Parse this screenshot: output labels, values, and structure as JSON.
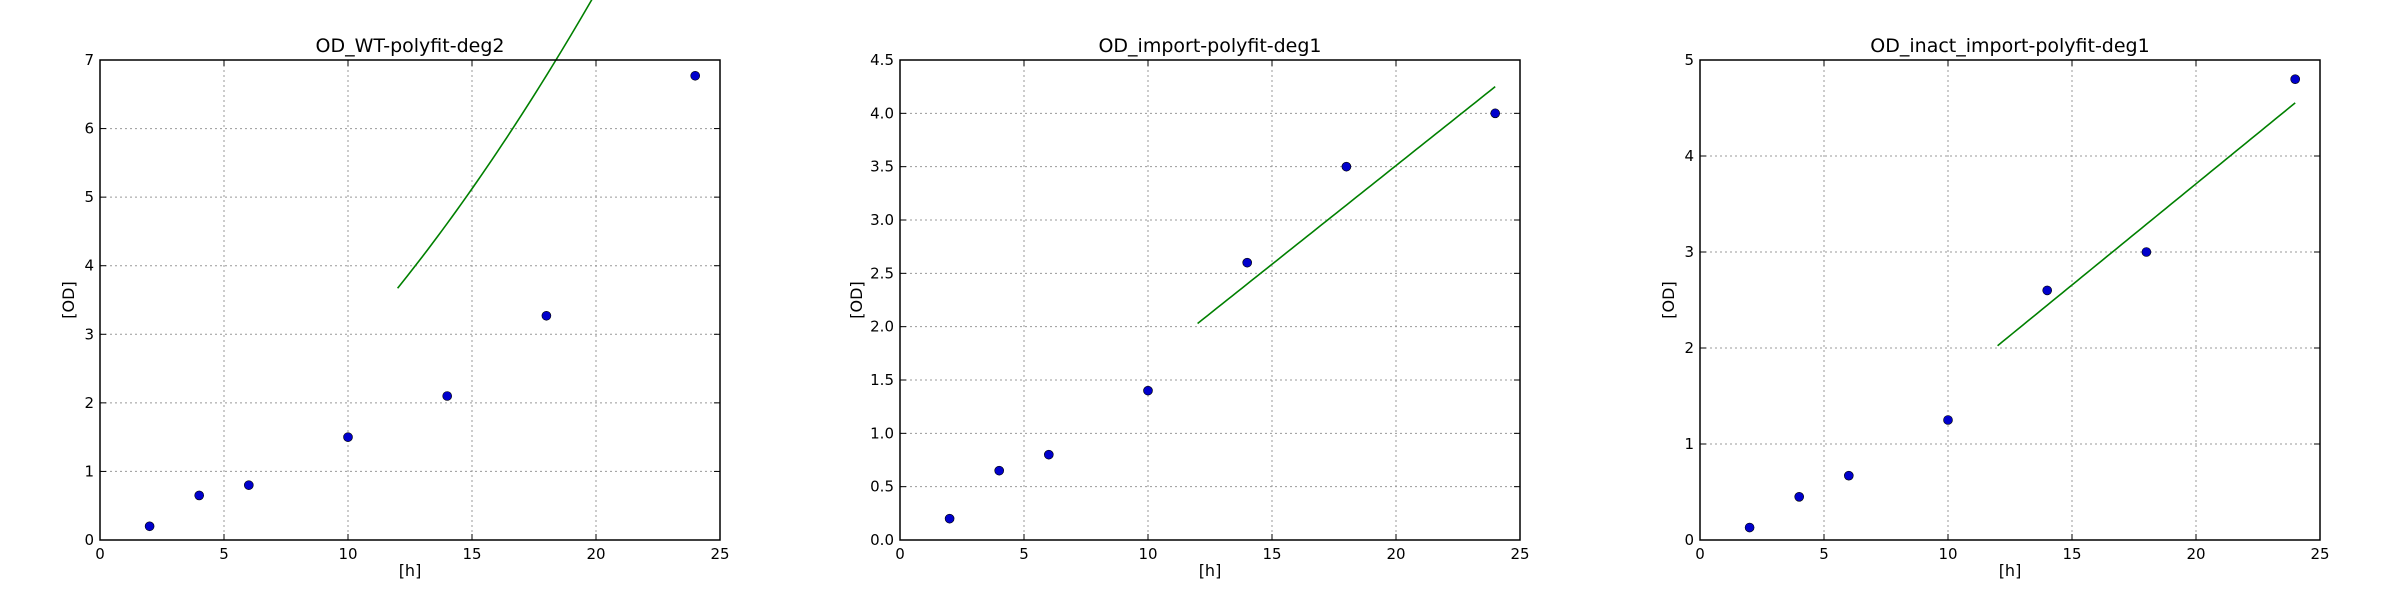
{
  "chart_data": [
    {
      "type": "scatter",
      "title": "OD_WT-polyfit-deg2",
      "xlabel": "[h]",
      "ylabel": "[OD]",
      "xlim": [
        0,
        25
      ],
      "ylim": [
        0,
        7
      ],
      "xticks": [
        "0",
        "5",
        "10",
        "15",
        "20",
        "25"
      ],
      "yticks": [
        "0",
        "1",
        "2",
        "3",
        "4",
        "5",
        "6",
        "7"
      ],
      "grid": true,
      "colors": {
        "points": "#0000cc",
        "fit": "#008000"
      },
      "points": {
        "x": [
          2,
          4,
          6,
          10,
          14,
          18,
          24
        ],
        "y": [
          0.2,
          0.65,
          0.8,
          1.5,
          2.1,
          3.27,
          6.77
        ]
      },
      "fit": {
        "type": "polyfit",
        "degree": 2,
        "coefficients": [
          0.011154,
          0.18231,
          -0.12193
        ],
        "x_range": [
          12,
          24
        ]
      }
    },
    {
      "type": "scatter",
      "title": "OD_import-polyfit-deg1",
      "xlabel": "[h]",
      "ylabel": "[OD]",
      "xlim": [
        0,
        25
      ],
      "ylim": [
        0,
        4.5
      ],
      "xticks": [
        "0",
        "5",
        "10",
        "15",
        "20",
        "25"
      ],
      "yticks": [
        "0.0",
        "0.5",
        "1.0",
        "1.5",
        "2.0",
        "2.5",
        "3.0",
        "3.5",
        "4.0",
        "4.5"
      ],
      "grid": true,
      "colors": {
        "points": "#0000cc",
        "fit": "#008000"
      },
      "points": {
        "x": [
          2,
          4,
          6,
          10,
          14,
          18,
          24
        ],
        "y": [
          0.2,
          0.65,
          0.8,
          1.4,
          2.6,
          3.5,
          4.0
        ]
      },
      "fit": {
        "type": "polyfit",
        "degree": 1,
        "coefficients": [
          0.185,
          -0.19
        ],
        "x_range": [
          12,
          24
        ]
      }
    },
    {
      "type": "scatter",
      "title": "OD_inact_import-polyfit-deg1",
      "xlabel": "[h]",
      "ylabel": "[OD]",
      "xlim": [
        0,
        25
      ],
      "ylim": [
        0,
        5
      ],
      "xticks": [
        "0",
        "5",
        "10",
        "15",
        "20",
        "25"
      ],
      "yticks": [
        "0",
        "1",
        "2",
        "3",
        "4",
        "5"
      ],
      "grid": true,
      "colors": {
        "points": "#0000cc",
        "fit": "#008000"
      },
      "points": {
        "x": [
          2,
          4,
          6,
          10,
          14,
          18,
          24
        ],
        "y": [
          0.13,
          0.45,
          0.67,
          1.25,
          2.6,
          3.0,
          4.8
        ]
      },
      "fit": {
        "type": "polyfit",
        "degree": 1,
        "coefficients": [
          0.2108,
          -0.5057
        ],
        "x_range": [
          12,
          24
        ]
      }
    }
  ]
}
